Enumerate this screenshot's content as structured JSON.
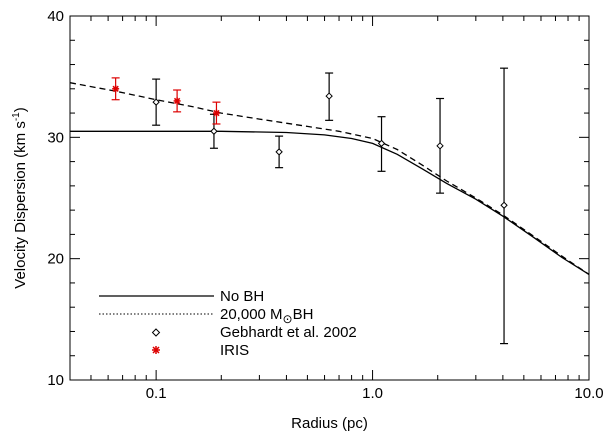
{
  "chart_data": {
    "type": "scatter",
    "xlabel": "Radius (pc)",
    "ylabel": "Velocity Dispersion (km s",
    "ylabel_sup": "-1",
    "ylabel_close": ")",
    "xscale": "log",
    "xlim": [
      0.04,
      10.0
    ],
    "ylim": [
      10,
      40
    ],
    "x_ticks": [
      0.1,
      1.0,
      10.0
    ],
    "x_tick_labels": [
      "0.1",
      "1.0",
      "10.0"
    ],
    "y_ticks": [
      10,
      20,
      30,
      40
    ],
    "y_tick_labels": [
      "10",
      "20",
      "30",
      "40"
    ],
    "grid": false,
    "legend_position": "bottom-left",
    "series": [
      {
        "name": "No BH",
        "kind": "line",
        "style": "solid",
        "color": "#000000",
        "x": [
          0.04,
          0.1,
          0.2,
          0.4,
          0.6,
          0.8,
          1.0,
          1.3,
          1.7,
          2.2,
          3.0,
          4.0,
          5.5,
          7.5,
          10.0
        ],
        "y": [
          30.5,
          30.5,
          30.5,
          30.4,
          30.2,
          29.9,
          29.5,
          28.6,
          27.4,
          26.2,
          24.9,
          23.5,
          21.8,
          20.1,
          18.7
        ]
      },
      {
        "name_prefix": "20,000 M",
        "name_suffix": "BH",
        "kind": "line",
        "style": "dashed",
        "color": "#000000",
        "x": [
          0.04,
          0.065,
          0.1,
          0.15,
          0.2,
          0.3,
          0.5,
          0.7,
          1.0,
          1.3,
          1.7,
          2.2,
          3.0,
          4.0,
          5.5,
          7.5,
          10.0
        ],
        "y": [
          34.5,
          33.8,
          33.1,
          32.5,
          32.0,
          31.5,
          30.9,
          30.5,
          29.9,
          29.0,
          27.7,
          26.4,
          25.0,
          23.6,
          21.9,
          20.2,
          18.7
        ]
      },
      {
        "name": "Gebhardt et al. 2002",
        "kind": "points",
        "marker": "diamond",
        "color": "#000000",
        "x": [
          0.1,
          0.185,
          0.37,
          0.63,
          1.1,
          2.05,
          4.05
        ],
        "y": [
          32.9,
          30.5,
          28.8,
          33.4,
          29.5,
          29.3,
          24.4
        ],
        "err_low": [
          1.9,
          1.4,
          1.3,
          2.0,
          2.3,
          3.9,
          11.4
        ],
        "err_high": [
          1.9,
          1.4,
          1.3,
          1.9,
          2.2,
          3.9,
          11.3
        ]
      },
      {
        "name": "IRIS",
        "kind": "points",
        "marker": "asterisk",
        "color": "#dd0000",
        "x": [
          0.065,
          0.125,
          0.19
        ],
        "y": [
          34.0,
          33.0,
          32.0
        ],
        "err_low": [
          0.9,
          0.9,
          0.9
        ],
        "err_high": [
          0.9,
          0.9,
          0.9
        ]
      }
    ]
  }
}
